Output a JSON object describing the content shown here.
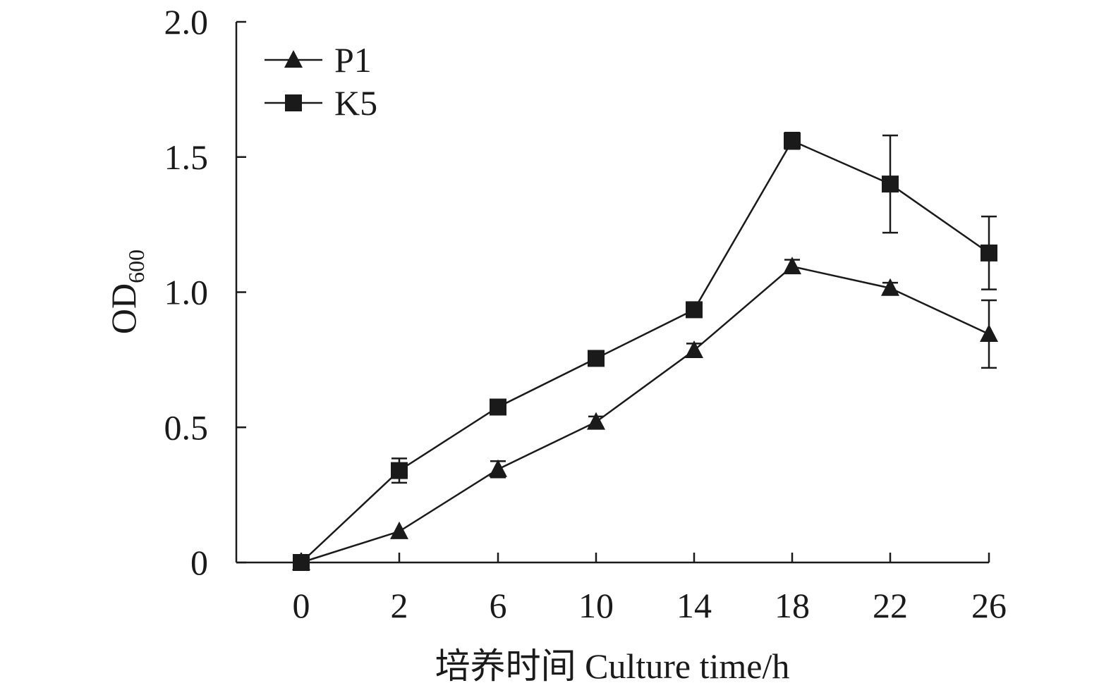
{
  "chart_data": {
    "type": "line",
    "categories": [
      "0",
      "2",
      "6",
      "10",
      "14",
      "18",
      "22",
      "26"
    ],
    "x_tick_labels": [
      "0",
      "2",
      "6",
      "10",
      "14",
      "18",
      "22",
      "26"
    ],
    "y_tick_labels": [
      "0",
      "0.5",
      "1.0",
      "1.5",
      "2.0"
    ],
    "y_ticks": [
      0,
      0.5,
      1.0,
      1.5,
      2.0
    ],
    "ylim": [
      0,
      2.0
    ],
    "xlabel": "培养时间 Culture time/h",
    "ylabel_main": "OD",
    "ylabel_sub": "600",
    "legend_position": "top-left",
    "grid": false,
    "colors": {
      "line": "#1a1a1a",
      "marker": "#1a1a1a"
    },
    "series": [
      {
        "name": "P1",
        "marker": "triangle",
        "values": [
          0.0,
          0.115,
          0.345,
          0.52,
          0.785,
          1.095,
          1.015,
          0.845
        ],
        "errors": [
          0.0,
          0.0,
          0.03,
          0.02,
          0.025,
          0.025,
          0.02,
          0.125
        ]
      },
      {
        "name": "K5",
        "marker": "square",
        "values": [
          0.0,
          0.34,
          0.575,
          0.755,
          0.935,
          1.56,
          1.4,
          1.145
        ],
        "errors": [
          0.0,
          0.045,
          0.0,
          0.0,
          0.0,
          0.03,
          0.18,
          0.135
        ]
      }
    ]
  }
}
